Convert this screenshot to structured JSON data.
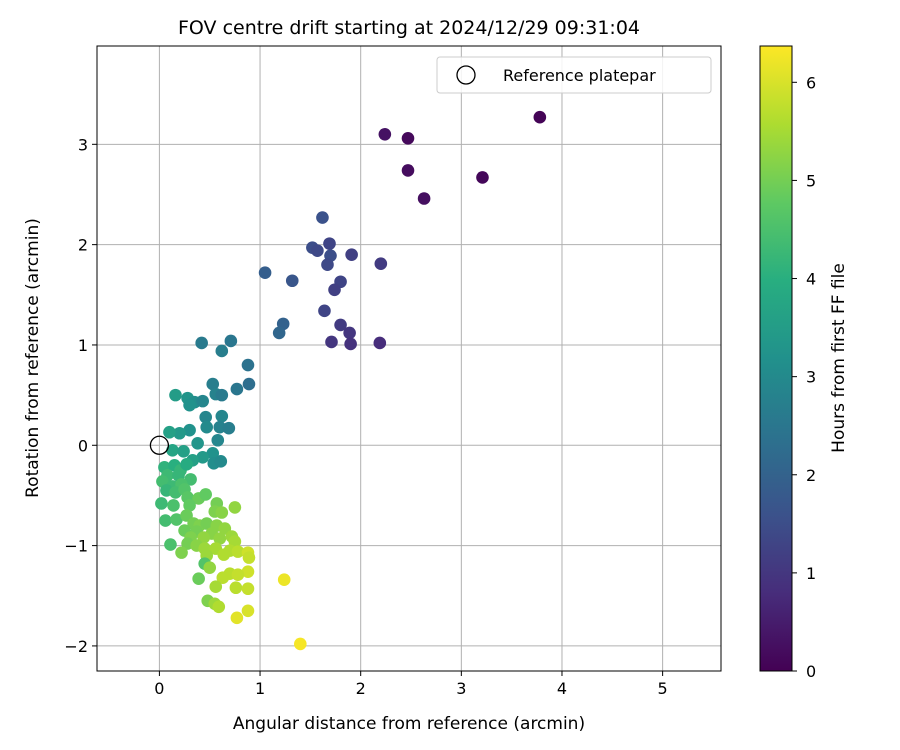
{
  "chart_data": {
    "type": "scatter",
    "title": "FOV centre drift starting at 2024/12/29 09:31:04",
    "xlabel": "Angular distance from reference (arcmin)",
    "ylabel": "Rotation from reference (arcmin)",
    "xlim": [
      -0.62,
      5.58
    ],
    "ylim": [
      -2.25,
      3.98
    ],
    "xticks": [
      "0",
      "1",
      "2",
      "3",
      "4",
      "5"
    ],
    "yticks": [
      "−2",
      "−1",
      "0",
      "1",
      "2",
      "3"
    ],
    "grid": true,
    "legend": {
      "position": "top-right",
      "entries": [
        "Reference platepar"
      ]
    },
    "reference_point": {
      "x": 0,
      "y": 0
    },
    "colorbar": {
      "label": "Hours from first FF file",
      "range": [
        0,
        6.37
      ],
      "ticks": [
        "0",
        "1",
        "2",
        "3",
        "4",
        "5",
        "6"
      ],
      "colormap": "viridis"
    },
    "points": [
      {
        "x": 3.78,
        "y": 3.27,
        "h": 0.05
      },
      {
        "x": 2.47,
        "y": 3.06,
        "h": 0.15
      },
      {
        "x": 2.24,
        "y": 3.1,
        "h": 0.3
      },
      {
        "x": 3.21,
        "y": 2.67,
        "h": 0.1
      },
      {
        "x": 2.47,
        "y": 2.74,
        "h": 0.2
      },
      {
        "x": 2.63,
        "y": 2.46,
        "h": 0.25
      },
      {
        "x": 1.62,
        "y": 2.27,
        "h": 1.6
      },
      {
        "x": 1.52,
        "y": 1.97,
        "h": 1.5
      },
      {
        "x": 1.57,
        "y": 1.94,
        "h": 1.4
      },
      {
        "x": 1.69,
        "y": 2.01,
        "h": 1.3
      },
      {
        "x": 1.7,
        "y": 1.89,
        "h": 1.5
      },
      {
        "x": 1.67,
        "y": 1.8,
        "h": 1.4
      },
      {
        "x": 1.91,
        "y": 1.9,
        "h": 1.2
      },
      {
        "x": 2.2,
        "y": 1.81,
        "h": 1.1
      },
      {
        "x": 1.05,
        "y": 1.72,
        "h": 1.9
      },
      {
        "x": 1.32,
        "y": 1.64,
        "h": 1.7
      },
      {
        "x": 1.8,
        "y": 1.63,
        "h": 1.3
      },
      {
        "x": 1.74,
        "y": 1.55,
        "h": 1.2
      },
      {
        "x": 1.64,
        "y": 1.34,
        "h": 1.3
      },
      {
        "x": 1.8,
        "y": 1.2,
        "h": 1.1
      },
      {
        "x": 1.89,
        "y": 1.12,
        "h": 1.0
      },
      {
        "x": 1.23,
        "y": 1.21,
        "h": 2.0
      },
      {
        "x": 1.19,
        "y": 1.12,
        "h": 2.1
      },
      {
        "x": 1.71,
        "y": 1.03,
        "h": 1.0
      },
      {
        "x": 1.9,
        "y": 1.01,
        "h": 0.9
      },
      {
        "x": 2.19,
        "y": 1.02,
        "h": 0.8
      },
      {
        "x": 0.42,
        "y": 1.02,
        "h": 2.6
      },
      {
        "x": 0.71,
        "y": 1.04,
        "h": 2.5
      },
      {
        "x": 0.62,
        "y": 0.94,
        "h": 2.7
      },
      {
        "x": 0.88,
        "y": 0.8,
        "h": 2.4
      },
      {
        "x": 0.89,
        "y": 0.61,
        "h": 2.3
      },
      {
        "x": 0.77,
        "y": 0.56,
        "h": 2.5
      },
      {
        "x": 0.53,
        "y": 0.61,
        "h": 2.7
      },
      {
        "x": 0.56,
        "y": 0.51,
        "h": 2.8
      },
      {
        "x": 0.62,
        "y": 0.5,
        "h": 2.6
      },
      {
        "x": 0.16,
        "y": 0.5,
        "h": 3.5
      },
      {
        "x": 0.28,
        "y": 0.47,
        "h": 3.3
      },
      {
        "x": 0.35,
        "y": 0.43,
        "h": 3.1
      },
      {
        "x": 0.3,
        "y": 0.4,
        "h": 3.2
      },
      {
        "x": 0.43,
        "y": 0.44,
        "h": 2.9
      },
      {
        "x": 0.46,
        "y": 0.28,
        "h": 2.9
      },
      {
        "x": 0.62,
        "y": 0.29,
        "h": 2.9
      },
      {
        "x": 0.47,
        "y": 0.18,
        "h": 3.0
      },
      {
        "x": 0.6,
        "y": 0.18,
        "h": 2.8
      },
      {
        "x": 0.69,
        "y": 0.17,
        "h": 2.7
      },
      {
        "x": 0.3,
        "y": 0.15,
        "h": 3.2
      },
      {
        "x": 0.2,
        "y": 0.12,
        "h": 3.4
      },
      {
        "x": 0.1,
        "y": 0.13,
        "h": 3.6
      },
      {
        "x": 0.58,
        "y": 0.05,
        "h": 2.9
      },
      {
        "x": 0.38,
        "y": 0.02,
        "h": 3.3
      },
      {
        "x": 0.13,
        "y": -0.05,
        "h": 3.7
      },
      {
        "x": 0.24,
        "y": -0.06,
        "h": 3.6
      },
      {
        "x": 0.53,
        "y": -0.08,
        "h": 3.2
      },
      {
        "x": 0.43,
        "y": -0.12,
        "h": 3.4
      },
      {
        "x": 0.54,
        "y": -0.18,
        "h": 3.1
      },
      {
        "x": 0.61,
        "y": -0.16,
        "h": 3.0
      },
      {
        "x": 0.33,
        "y": -0.15,
        "h": 3.6
      },
      {
        "x": 0.05,
        "y": -0.22,
        "h": 4.1
      },
      {
        "x": 0.15,
        "y": -0.2,
        "h": 4.0
      },
      {
        "x": 0.21,
        "y": -0.25,
        "h": 4.2
      },
      {
        "x": 0.27,
        "y": -0.19,
        "h": 3.9
      },
      {
        "x": 0.08,
        "y": -0.3,
        "h": 4.3
      },
      {
        "x": 0.19,
        "y": -0.3,
        "h": 4.2
      },
      {
        "x": 0.31,
        "y": -0.34,
        "h": 4.4
      },
      {
        "x": 0.03,
        "y": -0.36,
        "h": 4.4
      },
      {
        "x": 0.13,
        "y": -0.41,
        "h": 4.3
      },
      {
        "x": 0.22,
        "y": -0.39,
        "h": 4.5
      },
      {
        "x": 0.07,
        "y": -0.45,
        "h": 4.2
      },
      {
        "x": 0.16,
        "y": -0.47,
        "h": 4.4
      },
      {
        "x": 0.25,
        "y": -0.44,
        "h": 4.6
      },
      {
        "x": 0.28,
        "y": -0.52,
        "h": 4.7
      },
      {
        "x": 0.39,
        "y": -0.53,
        "h": 4.9
      },
      {
        "x": 0.46,
        "y": -0.49,
        "h": 4.8
      },
      {
        "x": 0.02,
        "y": -0.58,
        "h": 4.3
      },
      {
        "x": 0.14,
        "y": -0.6,
        "h": 4.5
      },
      {
        "x": 0.3,
        "y": -0.6,
        "h": 4.8
      },
      {
        "x": 0.57,
        "y": -0.58,
        "h": 5.0
      },
      {
        "x": 0.75,
        "y": -0.62,
        "h": 5.3
      },
      {
        "x": 0.55,
        "y": -0.66,
        "h": 5.1
      },
      {
        "x": 0.62,
        "y": -0.67,
        "h": 5.2
      },
      {
        "x": 0.06,
        "y": -0.75,
        "h": 4.4
      },
      {
        "x": 0.17,
        "y": -0.74,
        "h": 4.6
      },
      {
        "x": 0.27,
        "y": -0.7,
        "h": 4.9
      },
      {
        "x": 0.34,
        "y": -0.78,
        "h": 5.0
      },
      {
        "x": 0.4,
        "y": -0.8,
        "h": 5.1
      },
      {
        "x": 0.47,
        "y": -0.78,
        "h": 5.0
      },
      {
        "x": 0.57,
        "y": -0.8,
        "h": 5.2
      },
      {
        "x": 0.65,
        "y": -0.83,
        "h": 5.3
      },
      {
        "x": 0.25,
        "y": -0.85,
        "h": 4.9
      },
      {
        "x": 0.37,
        "y": -0.86,
        "h": 5.0
      },
      {
        "x": 0.52,
        "y": -0.88,
        "h": 5.2
      },
      {
        "x": 0.31,
        "y": -0.92,
        "h": 5.1
      },
      {
        "x": 0.44,
        "y": -0.92,
        "h": 5.3
      },
      {
        "x": 0.6,
        "y": -0.93,
        "h": 5.3
      },
      {
        "x": 0.72,
        "y": -0.91,
        "h": 5.4
      },
      {
        "x": 0.75,
        "y": -0.96,
        "h": 5.5
      },
      {
        "x": 0.28,
        "y": -0.98,
        "h": 5.0
      },
      {
        "x": 0.37,
        "y": -1.0,
        "h": 5.2
      },
      {
        "x": 0.45,
        "y": -1.03,
        "h": 5.4
      },
      {
        "x": 0.56,
        "y": -1.03,
        "h": 5.5
      },
      {
        "x": 0.11,
        "y": -0.99,
        "h": 4.5
      },
      {
        "x": 0.22,
        "y": -1.07,
        "h": 5.1
      },
      {
        "x": 0.47,
        "y": -1.1,
        "h": 5.4
      },
      {
        "x": 0.64,
        "y": -1.09,
        "h": 5.6
      },
      {
        "x": 0.7,
        "y": -1.05,
        "h": 5.6
      },
      {
        "x": 0.78,
        "y": -1.06,
        "h": 5.7
      },
      {
        "x": 0.88,
        "y": -1.07,
        "h": 5.9
      },
      {
        "x": 0.89,
        "y": -1.12,
        "h": 5.8
      },
      {
        "x": 0.45,
        "y": -1.18,
        "h": 4.6
      },
      {
        "x": 0.5,
        "y": -1.22,
        "h": 5.3
      },
      {
        "x": 0.88,
        "y": -1.26,
        "h": 5.9
      },
      {
        "x": 0.7,
        "y": -1.28,
        "h": 5.7
      },
      {
        "x": 0.78,
        "y": -1.29,
        "h": 5.8
      },
      {
        "x": 0.63,
        "y": -1.32,
        "h": 5.7
      },
      {
        "x": 0.39,
        "y": -1.33,
        "h": 4.9
      },
      {
        "x": 1.24,
        "y": -1.34,
        "h": 6.2
      },
      {
        "x": 0.56,
        "y": -1.41,
        "h": 5.5
      },
      {
        "x": 0.76,
        "y": -1.42,
        "h": 5.7
      },
      {
        "x": 0.88,
        "y": -1.43,
        "h": 5.8
      },
      {
        "x": 0.48,
        "y": -1.55,
        "h": 5.1
      },
      {
        "x": 0.55,
        "y": -1.58,
        "h": 5.4
      },
      {
        "x": 0.59,
        "y": -1.61,
        "h": 5.6
      },
      {
        "x": 0.88,
        "y": -1.65,
        "h": 6.0
      },
      {
        "x": 0.77,
        "y": -1.72,
        "h": 6.1
      },
      {
        "x": 1.4,
        "y": -1.98,
        "h": 6.3
      }
    ]
  }
}
